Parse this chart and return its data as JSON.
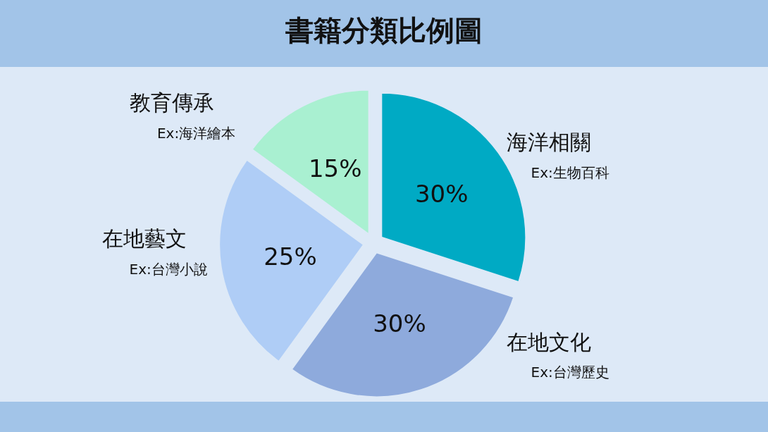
{
  "chart_data": {
    "type": "pie",
    "title": "書籍分類比例圖",
    "categories": [
      "海洋相關\nEx:生物百科",
      "在地文化\nEx:台灣歷史",
      "在地藝文\nEx:台灣小說",
      "教育傳承\nEx:海洋繪本"
    ],
    "values": [
      30,
      30,
      25,
      15
    ],
    "value_labels": [
      "30%",
      "30%",
      "25%",
      "15%"
    ],
    "colors": [
      "#00aac4",
      "#8eaadc",
      "#afcdf6",
      "#a9f0d1"
    ],
    "legend": false
  }
}
